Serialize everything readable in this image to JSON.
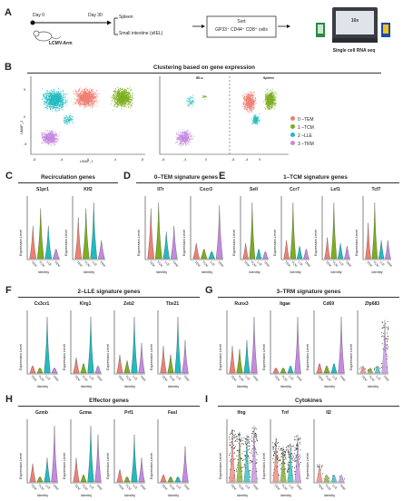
{
  "panel_letters": [
    "A",
    "B",
    "C",
    "D",
    "E",
    "F",
    "G",
    "H",
    "I"
  ],
  "panelA": {
    "day0": "Day 0",
    "day30": "Day 30",
    "infection": "LCMV-Arm",
    "tissue1": "Spleen",
    "tissue2": "Small intestine (siIEL)",
    "sort_line1": "Sort",
    "sort_line2": "GP33⁺ CD44⁺ CD8⁺ cells",
    "output": "Single cell RNA seq",
    "device_text": "10x"
  },
  "panelB": {
    "title": "Clustering based on gene expression",
    "xlabel": "UMAP_1",
    "ylabel": "UMAP_2",
    "sub_iels": "IELs",
    "sub_spleen": "Spleen",
    "ticks_x": [
      "-8",
      "-4",
      "0",
      "4",
      "8"
    ],
    "ticks_y": [
      "5",
      "0",
      "-5"
    ],
    "legend": [
      {
        "label": "0 –TEM",
        "color": "#f07f73"
      },
      {
        "label": "1 –TCM",
        "color": "#7cae1e"
      },
      {
        "label": "2 –LLE",
        "color": "#1fbcc0"
      },
      {
        "label": "3 –TRM",
        "color": "#c48ae0"
      }
    ]
  },
  "colors": {
    "tem": "#f07f73",
    "tcm": "#7cae1e",
    "lle": "#1fbcc0",
    "trm": "#c48ae0"
  },
  "identity_label": "Identity",
  "expr_label": "Expression Level",
  "cluster_ticks": [
    "TEM",
    "TCM",
    "LLE",
    "TRM"
  ],
  "sections": [
    {
      "id": "C",
      "title": "Recirculation genes",
      "genes": [
        "S1pr1",
        "Klf2"
      ]
    },
    {
      "id": "D",
      "title": "0–TEM signature genes",
      "genes": [
        "Il7r",
        "Cxcr3"
      ]
    },
    {
      "id": "E",
      "title": "1–TCM signature genes",
      "genes": [
        "Sell",
        "Ccr7",
        "Lef1",
        "Tcf7"
      ]
    },
    {
      "id": "F",
      "title": "2–LLE signature genes",
      "genes": [
        "Cx3cr1",
        "Klrg1",
        "Zeb2",
        "Tbx21"
      ]
    },
    {
      "id": "G",
      "title": "3–TRM signature genes",
      "genes": [
        "Runx3",
        "Itgae",
        "Cd69",
        "Zfp683"
      ]
    },
    {
      "id": "H",
      "title": "Effector genes",
      "genes": [
        "Gzmb",
        "Gzma",
        "Prf1",
        "Fasl"
      ]
    },
    {
      "id": "I",
      "title": "Cytokines",
      "genes": [
        "Ifng",
        "Tnf",
        "Il2"
      ]
    }
  ]
}
